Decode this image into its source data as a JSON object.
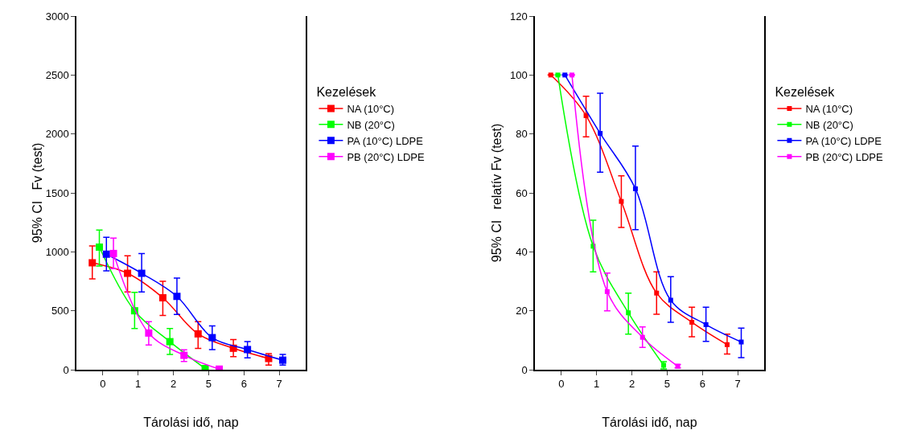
{
  "chart_data": [
    {
      "type": "line",
      "ylabel": "95% CI   Fv (test)",
      "xlabel": "Tárolási idő, nap",
      "legend_title": "Kezelések",
      "legend": "right",
      "marker": "square",
      "line_style": "solid",
      "grid": false,
      "categories": [
        "0",
        "1",
        "2",
        "5",
        "6",
        "7"
      ],
      "ylim": [
        0,
        3000
      ],
      "yticks": [
        0,
        500,
        1000,
        1500,
        2000,
        2500,
        3000
      ],
      "series": [
        {
          "name": "NA (10°C)",
          "color": "#ff0000",
          "values": [
            907,
            818,
            610,
            304,
            182,
            95
          ],
          "errors": [
            [
              770,
              1050
            ],
            [
              660,
              966
            ],
            [
              460,
              750
            ],
            [
              180,
              407
            ],
            [
              110,
              255
            ],
            [
              40,
              137
            ]
          ]
        },
        {
          "name": "NB (20°C)",
          "color": "#00ff00",
          "values": [
            1040,
            500,
            238,
            10,
            null,
            null
          ],
          "errors": [
            [
              880,
              1185
            ],
            [
              349,
              657
            ],
            [
              130,
              349
            ],
            null,
            null,
            null
          ]
        },
        {
          "name": "PA (10°C) LDPE",
          "color": "#0000ff",
          "values": [
            980,
            818,
            622,
            272,
            171,
            81
          ],
          "errors": [
            [
              838,
              1124
            ],
            [
              660,
              986
            ],
            [
              468,
              777
            ],
            [
              171,
              372
            ],
            [
              101,
              239
            ],
            [
              40,
              130
            ]
          ]
        },
        {
          "name": "PB (20°C) LDPE",
          "color": "#ff00ff",
          "values": [
            986,
            311,
            122,
            5,
            null,
            null
          ],
          "errors": [
            [
              858,
              1117
            ],
            [
              209,
              407
            ],
            [
              70,
              169
            ],
            null,
            null,
            null
          ]
        }
      ]
    },
    {
      "type": "line",
      "ylabel": "95% CI   relatív Fv (test)",
      "xlabel": "Tárolási idő, nap",
      "legend_title": "Kezelések",
      "legend": "right",
      "marker": "square",
      "line_style": "solid",
      "grid": false,
      "categories": [
        "0",
        "1",
        "2",
        "5",
        "6",
        "7"
      ],
      "ylim": [
        0,
        120
      ],
      "yticks": [
        0,
        20,
        40,
        60,
        80,
        100,
        120
      ],
      "series": [
        {
          "name": "NA (10°C)",
          "color": "#ff0000",
          "values": [
            100,
            86.2,
            57.1,
            26.0,
            16.1,
            8.5
          ],
          "errors": [
            null,
            [
              79.0,
              92.8
            ],
            [
              48.3,
              65.8
            ],
            [
              18.8,
              33.2
            ],
            [
              11.2,
              21.2
            ],
            [
              5.3,
              12.1
            ]
          ]
        },
        {
          "name": "NB (20°C)",
          "color": "#00ff00",
          "values": [
            100,
            41.9,
            19.3,
            1.5,
            null,
            null
          ],
          "errors": [
            null,
            [
              33.2,
              50.7
            ],
            [
              12.1,
              26.0
            ],
            [
              0.3,
              2.7
            ],
            null,
            null
          ]
        },
        {
          "name": "PA (10°C) LDPE",
          "color": "#0000ff",
          "values": [
            100,
            80.2,
            61.4,
            23.6,
            15.3,
            9.4
          ],
          "errors": [
            null,
            [
              67.0,
              93.8
            ],
            [
              47.5,
              75.9
            ],
            [
              16.1,
              31.6
            ],
            [
              9.6,
              21.2
            ],
            [
              4.1,
              14.1
            ]
          ]
        },
        {
          "name": "PB (20°C) LDPE",
          "color": "#ff00ff",
          "values": [
            100,
            26.5,
            11.0,
            1.2,
            null,
            null
          ],
          "errors": [
            null,
            [
              20.0,
              32.8
            ],
            [
              7.6,
              14.5
            ],
            [
              0.6,
              1.8
            ],
            null,
            null
          ]
        }
      ]
    }
  ]
}
